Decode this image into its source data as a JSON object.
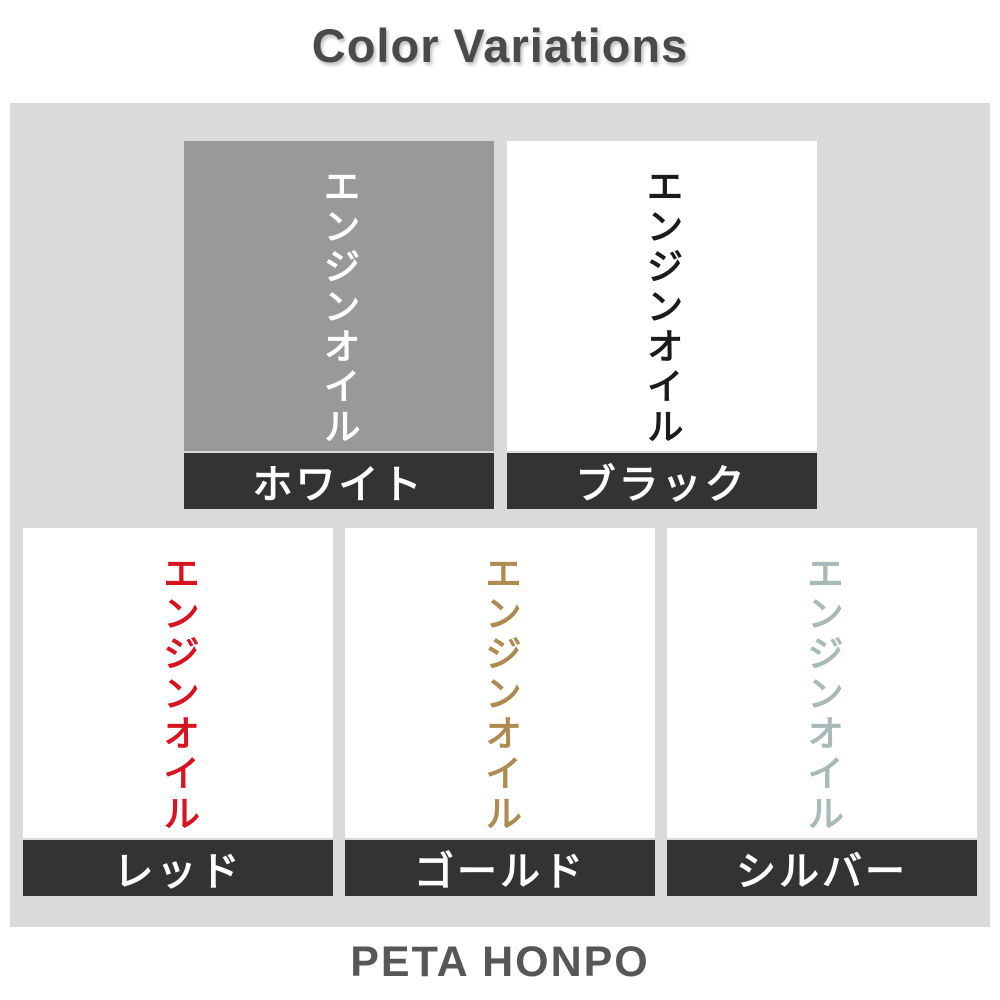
{
  "title": "Color Variations",
  "footer": "PETA HONPO",
  "product_text": "エンジンオイル",
  "colors": {
    "page_bg": "#ffffff",
    "panel_bg": "#dadada",
    "label_bar_bg": "#333333",
    "label_text": "#ffffff",
    "title_text": "#4a4a4a",
    "footer_text": "#575757"
  },
  "variants": [
    {
      "name": "ホワイト",
      "swatch_bg": "#999999",
      "text_color": "#ffffff"
    },
    {
      "name": "ブラック",
      "swatch_bg": "#ffffff",
      "text_color": "#1b1b1b"
    },
    {
      "name": "レッド",
      "swatch_bg": "#ffffff",
      "text_color": "#d61520"
    },
    {
      "name": "ゴールド",
      "swatch_bg": "#ffffff",
      "text_color": "#ad8b52"
    },
    {
      "name": "シルバー",
      "swatch_bg": "#ffffff",
      "text_color": "#a9b9b8"
    }
  ]
}
